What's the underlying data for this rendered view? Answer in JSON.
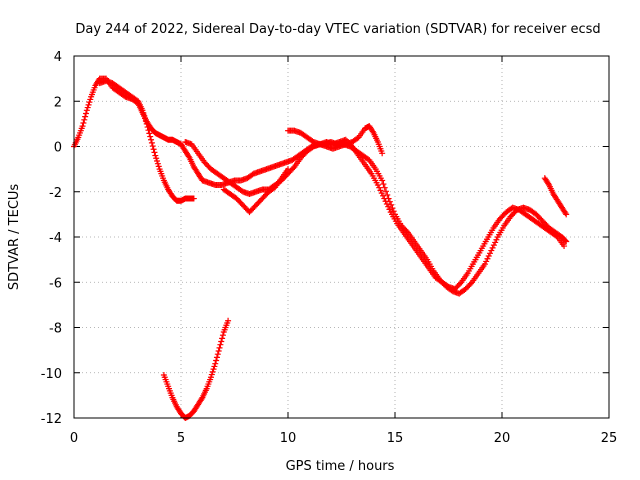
{
  "chart_data": {
    "type": "scatter",
    "title": "Day 244 of 2022, Sidereal Day-to-day VTEC variation (SDTVAR) for receiver ecsd",
    "xlabel": "GPS time / hours",
    "ylabel": "SDTVAR / TECUs",
    "xlim": [
      0,
      25
    ],
    "ylim": [
      -12,
      4
    ],
    "xticks": [
      0,
      5,
      10,
      15,
      20,
      25
    ],
    "yticks": [
      4,
      2,
      0,
      -2,
      -4,
      -6,
      -8,
      -10,
      -12
    ],
    "grid": true,
    "marker": "+",
    "color": "#ff0000",
    "series": [
      {
        "name": "track-main",
        "x": [
          0.0,
          0.2,
          0.4,
          0.6,
          0.8,
          1.0,
          1.2,
          1.5,
          1.8,
          2.1,
          2.4,
          2.7,
          3.0,
          3.2,
          3.4,
          3.6,
          3.8,
          4.0,
          4.2,
          4.4,
          4.6,
          4.8,
          5.0,
          5.2,
          5.4,
          5.6,
          5.8,
          6.0,
          6.3,
          6.6,
          6.9,
          7.2,
          7.5,
          7.8,
          8.1,
          8.4,
          8.7,
          9.0,
          9.3,
          9.6,
          9.9,
          10.2,
          10.5,
          10.8,
          11.1,
          11.4,
          11.7,
          12.0,
          12.3,
          12.6,
          12.9,
          13.2,
          13.5,
          13.8,
          14.1,
          14.4,
          14.7,
          15.0,
          15.3,
          15.6,
          15.9,
          16.2,
          16.5,
          16.8,
          17.1,
          17.4,
          17.7,
          18.0,
          18.3,
          18.6,
          18.9,
          19.2,
          19.5,
          19.8,
          20.1,
          20.4,
          20.7,
          21.0,
          21.3,
          21.6,
          21.9,
          22.2,
          22.5,
          22.8,
          23.0
        ],
        "y": [
          0.0,
          0.4,
          0.9,
          1.6,
          2.2,
          2.7,
          3.0,
          3.0,
          2.6,
          2.4,
          2.2,
          2.1,
          1.9,
          1.5,
          1.1,
          0.8,
          0.6,
          0.5,
          0.4,
          0.3,
          0.3,
          0.2,
          0.1,
          -0.2,
          -0.5,
          -0.9,
          -1.2,
          -1.5,
          -1.6,
          -1.7,
          -1.7,
          -1.6,
          -1.5,
          -1.5,
          -1.4,
          -1.2,
          -1.1,
          -1.0,
          -0.9,
          -0.8,
          -0.7,
          -0.6,
          -0.4,
          -0.2,
          0.0,
          0.1,
          0.1,
          0.2,
          0.1,
          0.1,
          0.0,
          -0.2,
          -0.4,
          -0.6,
          -1.0,
          -1.5,
          -2.3,
          -3.0,
          -3.5,
          -3.8,
          -4.2,
          -4.6,
          -5.0,
          -5.5,
          -5.9,
          -6.2,
          -6.4,
          -6.5,
          -6.3,
          -6.0,
          -5.6,
          -5.2,
          -4.6,
          -4.0,
          -3.5,
          -3.1,
          -2.8,
          -2.7,
          -2.8,
          -3.0,
          -3.3,
          -3.6,
          -3.8,
          -4.0,
          -4.2
        ]
      },
      {
        "name": "track-upper-a",
        "x": [
          1.2,
          1.5,
          1.8,
          2.1,
          2.4,
          2.7,
          3.0,
          3.2,
          3.4,
          3.6,
          3.8,
          4.0,
          4.2,
          4.4,
          4.6,
          4.8,
          5.0,
          5.2,
          5.4,
          5.6
        ],
        "y": [
          2.8,
          2.9,
          2.8,
          2.6,
          2.4,
          2.2,
          2.0,
          1.6,
          1.0,
          0.3,
          -0.4,
          -1.0,
          -1.5,
          -1.9,
          -2.2,
          -2.4,
          -2.4,
          -2.3,
          -2.3,
          -2.3
        ]
      },
      {
        "name": "track-upper-b",
        "x": [
          5.2,
          5.5,
          5.8,
          6.1,
          6.4,
          6.7,
          7.0,
          7.3,
          7.6,
          7.9,
          8.2,
          8.5,
          8.8,
          9.1,
          9.4,
          9.7,
          10.0,
          10.3,
          10.6,
          10.9,
          11.2,
          11.5,
          11.8,
          12.1,
          12.4,
          12.7,
          13.0,
          13.3,
          13.6,
          13.9,
          14.2,
          14.5,
          14.8,
          15.1,
          15.4,
          15.7,
          16.0,
          16.3,
          16.6,
          16.9,
          17.2,
          17.5,
          17.8,
          18.1,
          18.4,
          18.7,
          19.0,
          19.3,
          19.6,
          19.9,
          20.2,
          20.5,
          20.8,
          21.1,
          21.4,
          21.7,
          22.0,
          22.3,
          22.6,
          22.9
        ],
        "y": [
          0.2,
          0.1,
          -0.3,
          -0.7,
          -1.0,
          -1.2,
          -1.4,
          -1.6,
          -1.8,
          -2.0,
          -2.1,
          -2.0,
          -1.9,
          -1.9,
          -1.7,
          -1.5,
          -1.2,
          -0.9,
          -0.5,
          -0.2,
          0.0,
          0.1,
          0.2,
          0.1,
          0.2,
          0.3,
          0.0,
          -0.4,
          -0.8,
          -1.2,
          -1.7,
          -2.3,
          -2.9,
          -3.4,
          -3.8,
          -4.2,
          -4.6,
          -5.0,
          -5.4,
          -5.8,
          -6.0,
          -6.2,
          -6.3,
          -6.0,
          -5.6,
          -5.1,
          -4.6,
          -4.1,
          -3.6,
          -3.2,
          -2.9,
          -2.7,
          -2.8,
          -3.0,
          -3.2,
          -3.4,
          -3.6,
          -3.8,
          -4.0,
          -4.4
        ]
      },
      {
        "name": "track-evening",
        "x": [
          10.0,
          10.3,
          10.6,
          10.9,
          11.2,
          11.5,
          11.8,
          12.1,
          12.4,
          12.7,
          13.0,
          13.3,
          13.6,
          13.8,
          14.0,
          14.2,
          14.4
        ],
        "y": [
          0.7,
          0.7,
          0.6,
          0.4,
          0.2,
          0.1,
          0.0,
          -0.1,
          0.0,
          0.1,
          0.2,
          0.4,
          0.8,
          0.9,
          0.6,
          0.2,
          -0.3
        ]
      },
      {
        "name": "track-low-mid",
        "x": [
          7.0,
          7.3,
          7.6,
          7.9,
          8.2,
          8.5,
          8.8,
          9.1,
          9.4,
          9.7,
          10.0
        ],
        "y": [
          -1.9,
          -2.1,
          -2.3,
          -2.6,
          -2.9,
          -2.6,
          -2.3,
          -2.0,
          -1.8,
          -1.4,
          -1.0
        ]
      },
      {
        "name": "track-late",
        "x": [
          22.0,
          22.2,
          22.4,
          22.6,
          22.8,
          23.0
        ],
        "y": [
          -1.4,
          -1.7,
          -2.1,
          -2.4,
          -2.7,
          -3.0
        ]
      },
      {
        "name": "track-dip",
        "x": [
          4.2,
          4.4,
          4.6,
          4.8,
          5.0,
          5.2,
          5.4,
          5.6,
          5.8,
          6.0,
          6.2,
          6.4,
          6.6,
          6.8,
          7.0,
          7.2
        ],
        "y": [
          -10.1,
          -10.6,
          -11.1,
          -11.5,
          -11.8,
          -12.0,
          -11.9,
          -11.7,
          -11.4,
          -11.1,
          -10.7,
          -10.2,
          -9.6,
          -8.9,
          -8.2,
          -7.7
        ]
      }
    ]
  }
}
